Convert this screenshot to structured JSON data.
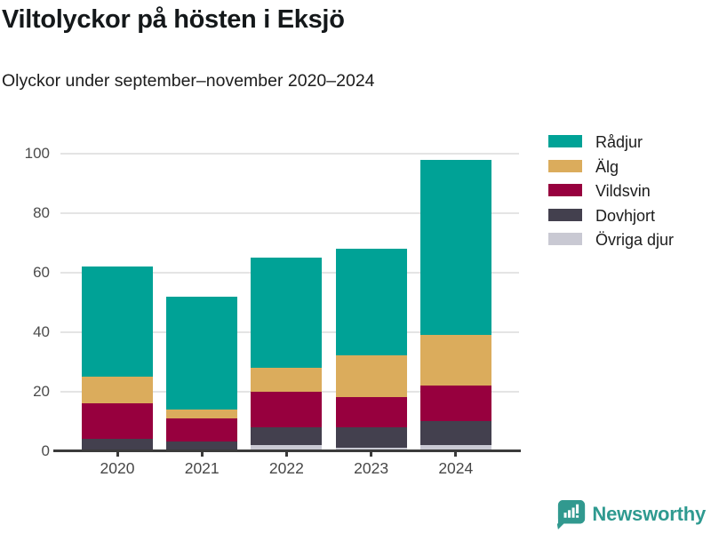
{
  "header": {
    "title": "Viltolyckor på hösten i Eksjö",
    "subtitle": "Olyckor under september–november 2020–2024"
  },
  "chart_data": {
    "type": "bar",
    "stacked": true,
    "title": "Viltolyckor på hösten i Eksjö",
    "subtitle": "Olyckor under september–november 2020–2024",
    "categories": [
      "2020",
      "2021",
      "2022",
      "2023",
      "2024"
    ],
    "series": [
      {
        "name": "Övriga djur",
        "color": "#c9c9d3",
        "values": [
          0,
          0,
          2,
          1,
          2
        ]
      },
      {
        "name": "Dovhjort",
        "color": "#43404e",
        "values": [
          4,
          3,
          6,
          7,
          8
        ]
      },
      {
        "name": "Vildsvin",
        "color": "#97003e",
        "values": [
          12,
          8,
          12,
          10,
          12
        ]
      },
      {
        "name": "Älg",
        "color": "#dbac5c",
        "values": [
          9,
          3,
          8,
          14,
          17
        ]
      },
      {
        "name": "Rådjur",
        "color": "#00a296",
        "values": [
          37,
          38,
          37,
          36,
          59
        ]
      }
    ],
    "totals": [
      62,
      52,
      65,
      68,
      98
    ],
    "xlabel": "",
    "ylabel": "",
    "ylim": [
      0,
      100
    ],
    "yticks": [
      0,
      20,
      40,
      60,
      80,
      100
    ],
    "grid": "horizontal",
    "legend_position": "top-right",
    "legend_order": [
      "Rådjur",
      "Älg",
      "Vildsvin",
      "Dovhjort",
      "Övriga djur"
    ]
  },
  "footer": {
    "brand": "Newsworthy"
  },
  "colors": {
    "grid": "#e4e4e4",
    "axis": "#3b3b3b",
    "y_tick_label": "#4c4c4c",
    "x_tick_label": "#474747",
    "title_text": "#14181a",
    "brand_teal": "#2f9a90"
  }
}
